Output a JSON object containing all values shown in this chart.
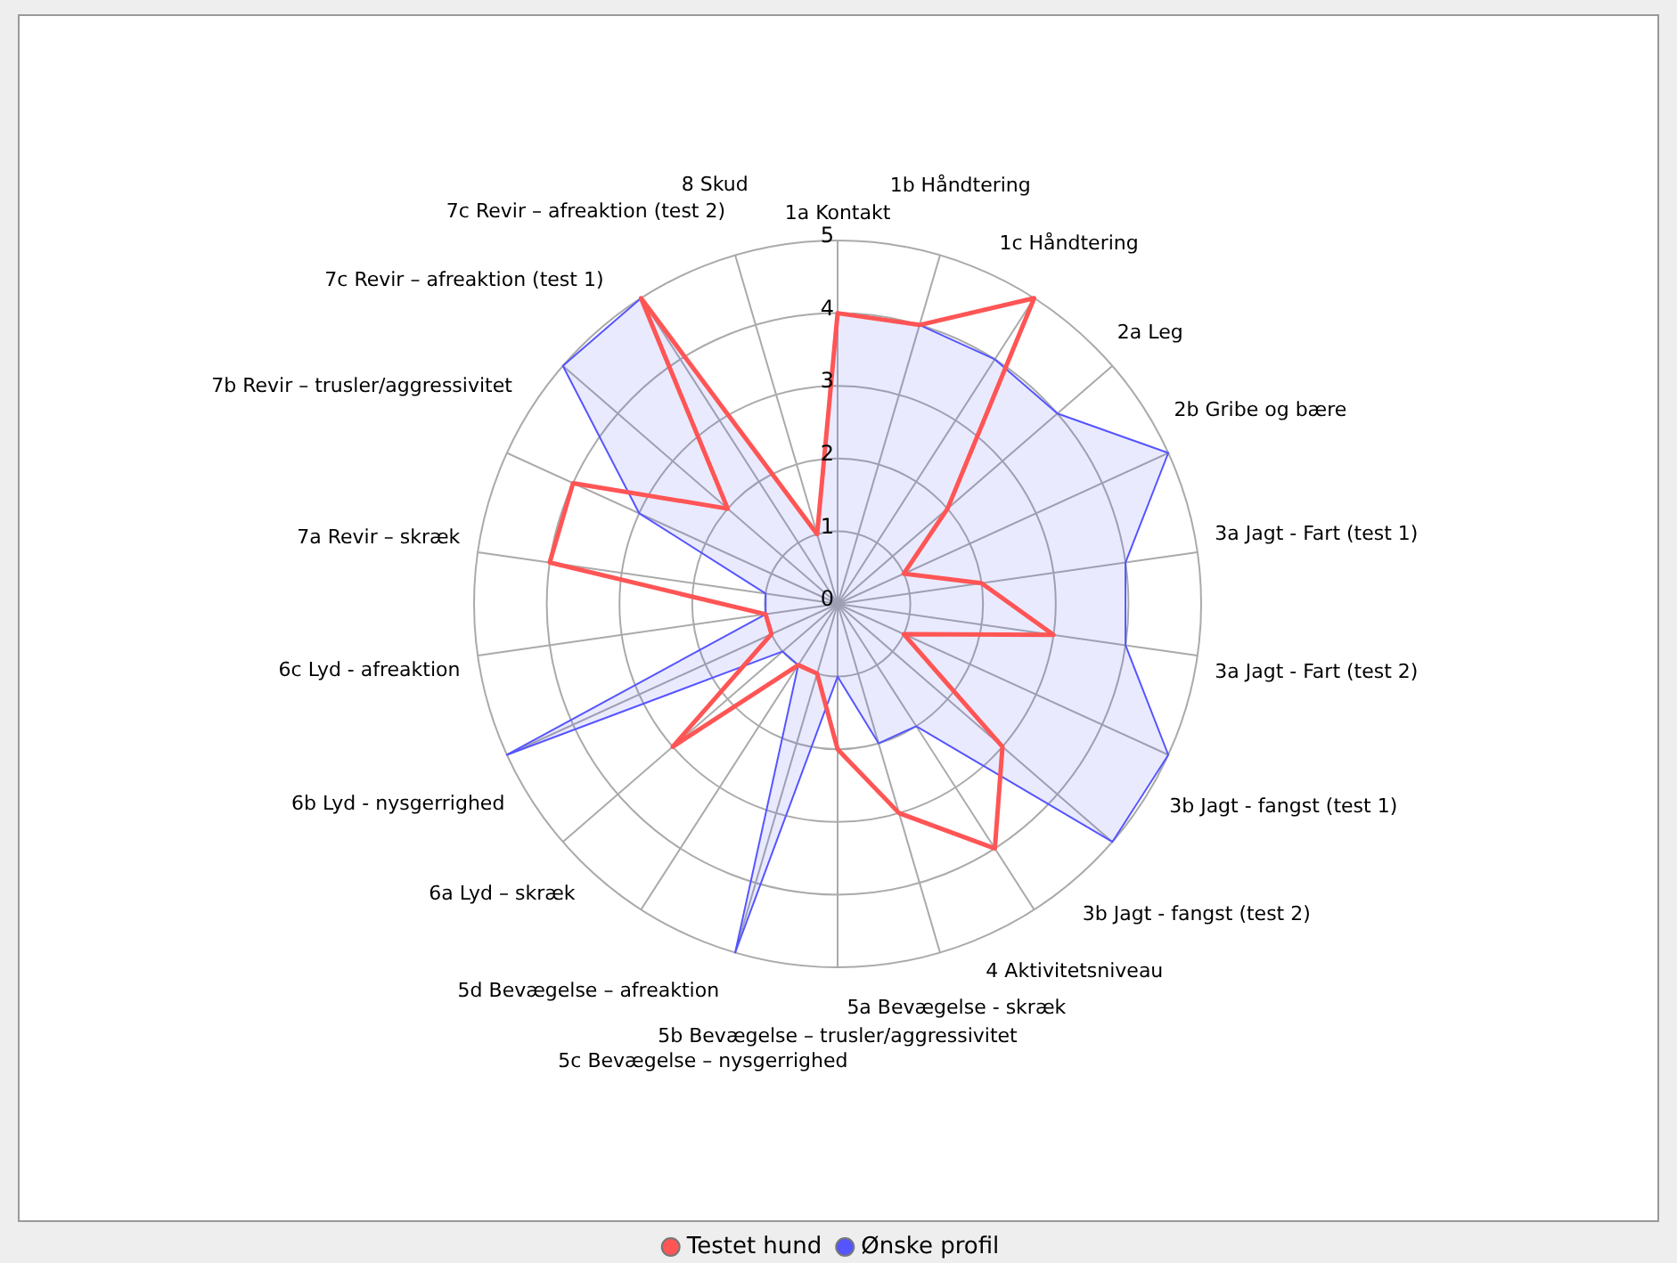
{
  "chart_data": {
    "type": "radar",
    "categories": [
      "1a Kontakt",
      "1b Håndtering",
      "1c Håndtering",
      "2a Leg",
      "2b Gribe og bære",
      "3a Jagt - Fart (test 1)",
      "3a Jagt - Fart (test 2)",
      "3b Jagt - fangst (test 1)",
      "3b Jagt - fangst (test 2)",
      "4 Aktivitetsniveau",
      "5a Bevægelse - skræk",
      "5b Bevægelse – trusler/aggressivitet",
      "5c Bevægelse – nysgerrighed",
      "5d Bevægelse – afreaktion",
      "6a Lyd – skræk",
      "6b Lyd - nysgerrighed",
      "6c Lyd - afreaktion",
      "7a Revir – skræk",
      "7b Revir – trusler/aggressivitet",
      "7c Revir – afreaktion (test 1)",
      "7c Revir – afreaktion (test 2)",
      "8 Skud"
    ],
    "series": [
      {
        "name": "Testet hund",
        "color": "#ff5555",
        "values": [
          4,
          4,
          5,
          2,
          1,
          2,
          3,
          1,
          3,
          4,
          3,
          2,
          1,
          1,
          3,
          1,
          1,
          4,
          4,
          2,
          5,
          1
        ]
      },
      {
        "name": "Ønske profil",
        "color": "#5555ff",
        "values": [
          4,
          4,
          4,
          4,
          5,
          4,
          4,
          5,
          5,
          2,
          2,
          1,
          5,
          1,
          1,
          5,
          1,
          1,
          3,
          5,
          5,
          1
        ]
      }
    ],
    "ylim": [
      0,
      5
    ],
    "yticks": [
      0,
      1,
      2,
      3,
      4,
      5
    ],
    "grid": true,
    "legend": "bottom",
    "marker": "none"
  }
}
